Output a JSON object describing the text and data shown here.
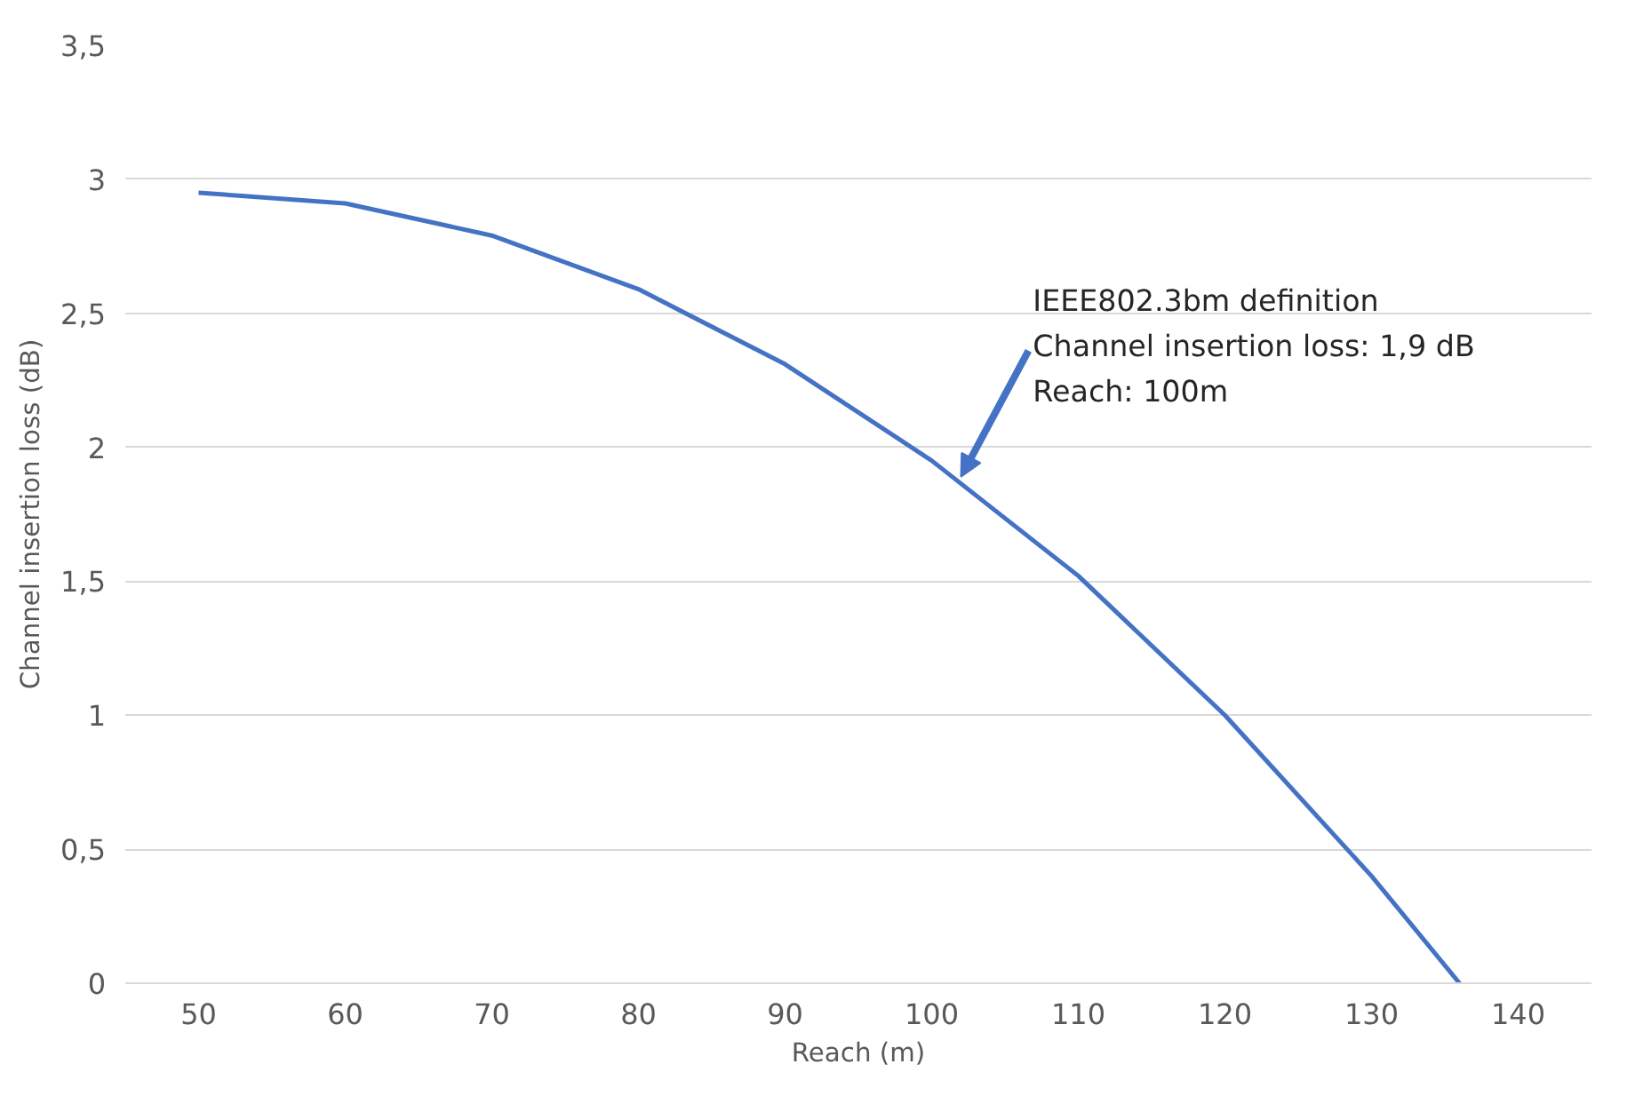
{
  "chart_data": {
    "type": "line",
    "xlabel": "Reach (m)",
    "ylabel": "Channel insertion loss (dB)",
    "x": [
      50,
      60,
      70,
      80,
      90,
      100,
      110,
      120,
      130,
      136
    ],
    "series": [
      {
        "color": "#4472c4",
        "values": [
          2.95,
          2.91,
          2.79,
          2.59,
          2.31,
          1.95,
          1.52,
          1.0,
          0.4,
          0
        ]
      }
    ],
    "xlim": [
      45,
      145
    ],
    "xticks": [
      50,
      60,
      70,
      80,
      90,
      100,
      110,
      120,
      130,
      140
    ],
    "ylim": [
      0,
      3.5
    ],
    "yticks": [
      0,
      {
        "value": 0.5,
        "label": "0,5"
      },
      1,
      {
        "value": 1.5,
        "label": "1,5"
      },
      2,
      {
        "value": 2.5,
        "label": "2,5"
      },
      3,
      {
        "value": 3.5,
        "label": "3,5"
      }
    ],
    "grid": "y",
    "marker": "none",
    "line_style": "solid",
    "annotations": [
      {
        "text": "IEEE802.3bm definition\nChannel insertion loss: 1,9 dB\nReach: 100m",
        "x": 102,
        "y": 1.89
      }
    ]
  }
}
